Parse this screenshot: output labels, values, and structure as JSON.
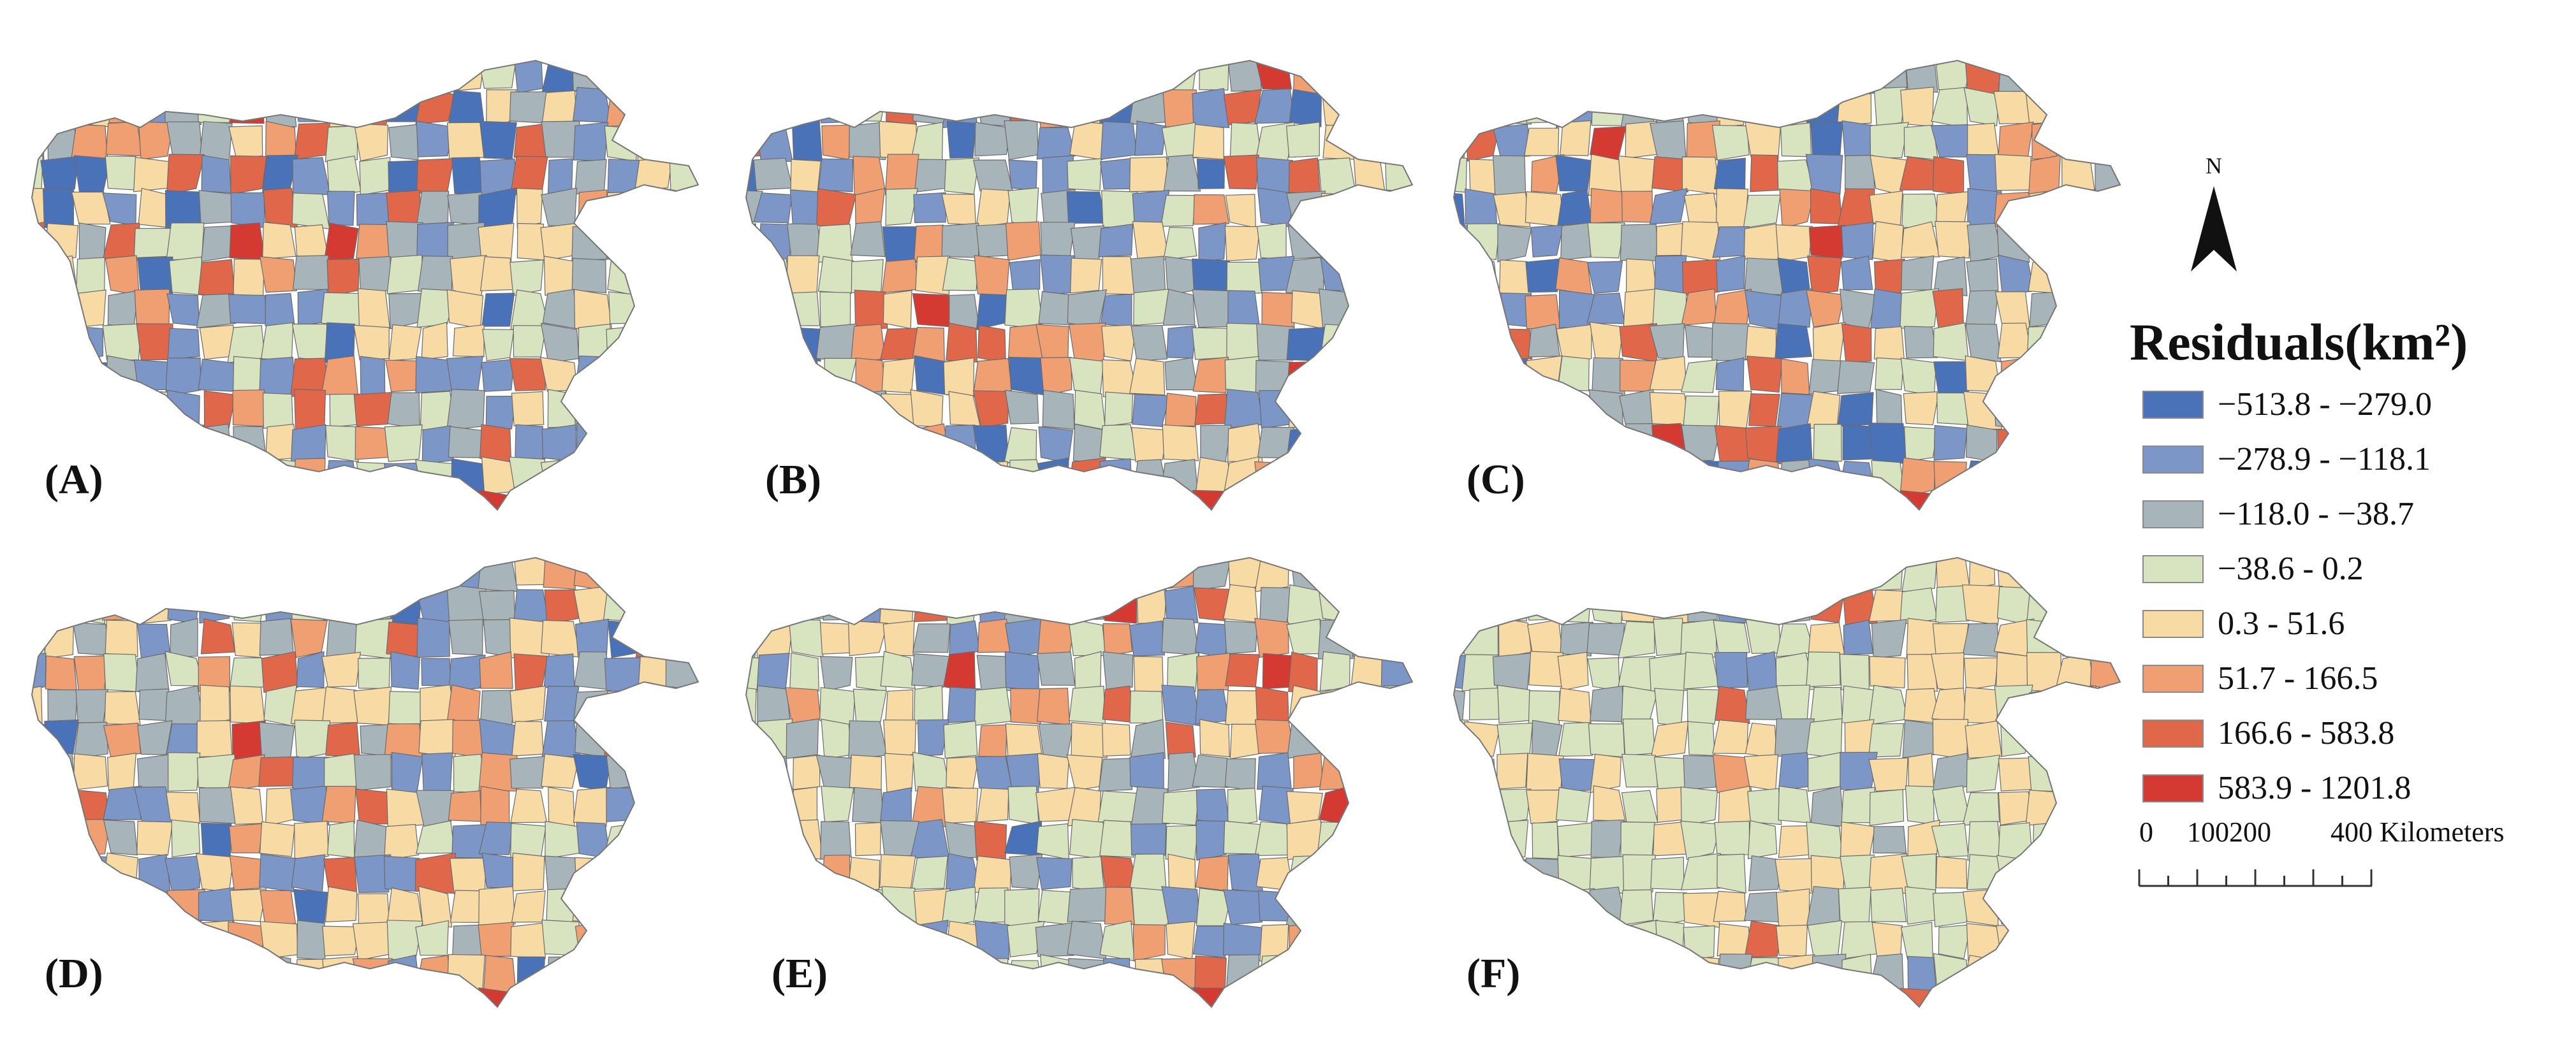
{
  "panels": [
    {
      "label": "(A)",
      "extreme_bands": [
        0,
        7
      ]
    },
    {
      "label": "(B)",
      "extreme_bands": [
        0,
        7
      ]
    },
    {
      "label": "(C)",
      "extreme_bands": [
        0,
        7
      ]
    },
    {
      "label": "(D)",
      "extreme_bands": [
        0,
        7
      ]
    },
    {
      "label": "(E)",
      "extreme_bands": [
        0,
        7
      ]
    },
    {
      "label": "(F)",
      "extreme_bands": [
        3,
        4
      ]
    }
  ],
  "legend": {
    "title": "Residuals(km²)",
    "classes": [
      {
        "label": "−513.8 - −279.0",
        "color": "#4a72b8"
      },
      {
        "label": "−278.9 - −118.1",
        "color": "#7b96c7"
      },
      {
        "label": "−118.0 - −38.7",
        "color": "#a7b5ba"
      },
      {
        "label": "−38.6 - 0.2",
        "color": "#d8e4bf"
      },
      {
        "label": "0.3 - 51.6",
        "color": "#f8dba4"
      },
      {
        "label": "51.7 - 166.5",
        "color": "#ef9f71"
      },
      {
        "label": "166.6 - 583.8",
        "color": "#e0674a"
      },
      {
        "label": "583.9 - 1201.8",
        "color": "#d53a32"
      }
    ]
  },
  "north_arrow": {
    "label": "N",
    "icon": "north-arrow-icon"
  },
  "scale_bar": {
    "tick_labels": [
      "0",
      "100200",
      "400 Kilometers"
    ],
    "unit": "Kilometers"
  },
  "colors": {
    "boundary": "#6b6b6b",
    "text": "#111111",
    "background": "#ffffff"
  }
}
